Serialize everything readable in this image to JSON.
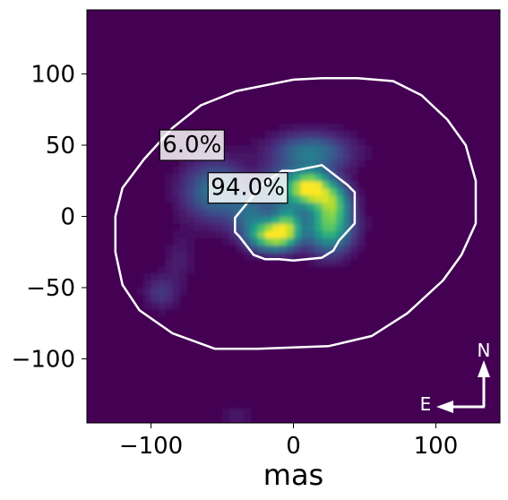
{
  "chart_data": {
    "type": "heatmap",
    "title": "",
    "xlabel": "mas",
    "ylabel": "",
    "xlim": [
      -145,
      145
    ],
    "ylim": [
      -145,
      145
    ],
    "xticks": [
      -100,
      0,
      100
    ],
    "yticks": [
      100,
      50,
      0,
      -50,
      -100
    ],
    "xtick_labels": [
      "−100",
      "0",
      "100"
    ],
    "ytick_labels": [
      "100",
      "50",
      "0",
      "−50",
      "−100"
    ],
    "colormap": "viridis",
    "background_color": "#440154",
    "emission_blobs": [
      {
        "x": 12,
        "y": 20,
        "sx": 9,
        "sy": 8,
        "amp": 1.0
      },
      {
        "x": -15,
        "y": -13,
        "sx": 11,
        "sy": 7,
        "amp": 0.92
      },
      {
        "x": -4,
        "y": -5,
        "sx": 7,
        "sy": 9,
        "amp": 0.55
      },
      {
        "x": 25,
        "y": -7,
        "sx": 11,
        "sy": 12,
        "amp": 0.7
      },
      {
        "x": 28,
        "y": 12,
        "sx": 8,
        "sy": 9,
        "amp": 0.55
      },
      {
        "x": 12,
        "y": 45,
        "sx": 18,
        "sy": 9,
        "amp": 0.42
      },
      {
        "x": -8,
        "y": 20,
        "sx": 11,
        "sy": 9,
        "amp": 0.42
      },
      {
        "x": -55,
        "y": 18,
        "sx": 15,
        "sy": 14,
        "amp": 0.4
      },
      {
        "x": -30,
        "y": 2,
        "sx": 10,
        "sy": 10,
        "amp": 0.3
      },
      {
        "x": -93,
        "y": -53,
        "sx": 8,
        "sy": 8,
        "amp": 0.16
      },
      {
        "x": -80,
        "y": -30,
        "sx": 7,
        "sy": 12,
        "amp": 0.08
      },
      {
        "x": -40,
        "y": -140,
        "sx": 10,
        "sy": 6,
        "amp": 0.06
      }
    ],
    "contours": [
      {
        "label": "94.0%",
        "color": "#ffffff",
        "polygon": [
          [
            -22,
            22
          ],
          [
            -8,
            32
          ],
          [
            0,
            32
          ],
          [
            20,
            36
          ],
          [
            38,
            22
          ],
          [
            43,
            17
          ],
          [
            43,
            -5
          ],
          [
            32,
            -17
          ],
          [
            28,
            -24
          ],
          [
            20,
            -29
          ],
          [
            0,
            -31
          ],
          [
            -10,
            -30
          ],
          [
            -20,
            -30
          ],
          [
            -28,
            -27
          ],
          [
            -38,
            -14
          ],
          [
            -41,
            -11
          ],
          [
            -41,
            -1
          ]
        ]
      },
      {
        "label": "6.0%",
        "color": "#ffffff",
        "polygon": [
          [
            -125,
            0
          ],
          [
            -120,
            20
          ],
          [
            -105,
            40
          ],
          [
            -85,
            62
          ],
          [
            -65,
            78
          ],
          [
            -40,
            88
          ],
          [
            -15,
            93
          ],
          [
            0,
            96
          ],
          [
            20,
            97
          ],
          [
            45,
            97
          ],
          [
            70,
            95
          ],
          [
            90,
            85
          ],
          [
            108,
            68
          ],
          [
            121,
            50
          ],
          [
            128,
            25
          ],
          [
            128,
            -5
          ],
          [
            118,
            -27
          ],
          [
            105,
            -45
          ],
          [
            80,
            -68
          ],
          [
            55,
            -84
          ],
          [
            25,
            -91
          ],
          [
            0,
            -92
          ],
          [
            -25,
            -93
          ],
          [
            -55,
            -93
          ],
          [
            -85,
            -82
          ],
          [
            -108,
            -66
          ],
          [
            -120,
            -48
          ],
          [
            -125,
            -25
          ]
        ]
      }
    ],
    "annotations": [
      {
        "text": "6.0%",
        "x": -92,
        "y": 45
      },
      {
        "text": "94.0%",
        "x": -58,
        "y": 15
      }
    ],
    "compass": {
      "north_label": "N",
      "east_label": "E"
    }
  }
}
